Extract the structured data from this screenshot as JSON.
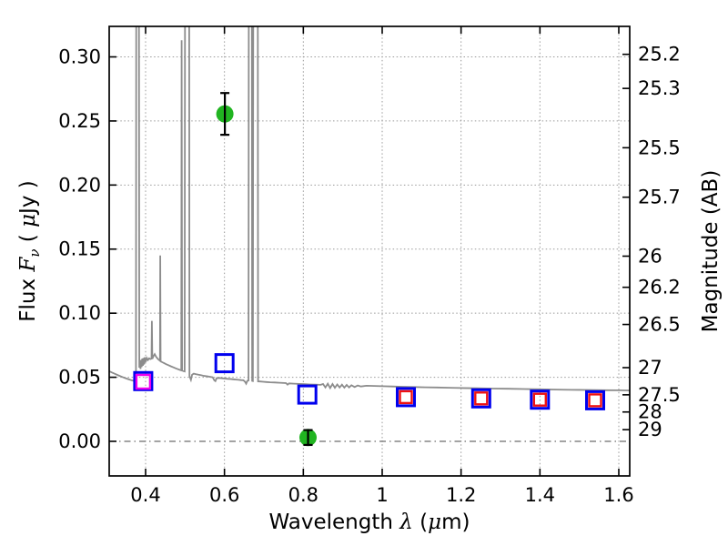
{
  "figure": {
    "background": "#ffffff",
    "frame_color": "#000000"
  },
  "chart_data": {
    "type": "line",
    "title": "",
    "xlabel": "Wavelength λ (μm)",
    "xlabel_parts": [
      {
        "t": "Wavelength  ",
        "cls": "n"
      },
      {
        "t": "λ",
        "cls": "mi"
      },
      {
        "t": " (",
        "cls": "n"
      },
      {
        "t": "μ",
        "cls": "mi"
      },
      {
        "t": "m)",
        "cls": "n"
      }
    ],
    "ylabel_left": "Flux Fν ( μJy )",
    "ylabel_left_parts": [
      {
        "t": "Flux  ",
        "cls": "n"
      },
      {
        "t": "F",
        "cls": "mi"
      },
      {
        "t": "ν",
        "cls": "sub"
      },
      {
        "t": "  ( ",
        "cls": "n"
      },
      {
        "t": "μ",
        "cls": "mi"
      },
      {
        "t": "Jy )",
        "cls": "n"
      }
    ],
    "ylabel_right": "Magnitude (AB)",
    "xlim": [
      0.3077,
      1.6277
    ],
    "ylim": [
      -0.027,
      0.3238
    ],
    "grid": {
      "style": "dotted",
      "color": "#9a9a9a",
      "on": true
    },
    "zero_line": {
      "y": 0.0,
      "style": "dash-dot",
      "color": "#4a4a4a"
    },
    "legend": "none",
    "x_ticks": [
      {
        "label": "0.4",
        "v": 0.4
      },
      {
        "label": "0.6",
        "v": 0.6
      },
      {
        "label": "0.8",
        "v": 0.8
      },
      {
        "label": "1",
        "v": 1.0
      },
      {
        "label": "1.2",
        "v": 1.2
      },
      {
        "label": "1.4",
        "v": 1.4
      },
      {
        "label": "1.6",
        "v": 1.6
      }
    ],
    "y_ticks_flux": [
      {
        "label": "0.00",
        "v": 0.0
      },
      {
        "label": "0.05",
        "v": 0.05
      },
      {
        "label": "0.10",
        "v": 0.1
      },
      {
        "label": "0.15",
        "v": 0.15
      },
      {
        "label": "0.20",
        "v": 0.2
      },
      {
        "label": "0.25",
        "v": 0.25
      },
      {
        "label": "0.30",
        "v": 0.3
      }
    ],
    "y_ticks_mag": [
      {
        "label": "25.2",
        "flux": 0.302
      },
      {
        "label": "25.3",
        "flux": 0.2754
      },
      {
        "label": "25.5",
        "flux": 0.2291
      },
      {
        "label": "25.7",
        "flux": 0.1905
      },
      {
        "label": "26",
        "flux": 0.1445
      },
      {
        "label": "26.2",
        "flux": 0.1202
      },
      {
        "label": "26.5",
        "flux": 0.0912
      },
      {
        "label": "27",
        "flux": 0.0575
      },
      {
        "label": "27.5",
        "flux": 0.0363
      },
      {
        "label": "28",
        "flux": 0.0229
      },
      {
        "label": "29",
        "flux": 0.0091
      }
    ],
    "series": [
      {
        "name": "model-spectrum",
        "type": "line",
        "color": "#8c8c8c",
        "width": 1.8,
        "points": [
          [
            0.3077,
            0.0547
          ],
          [
            0.315,
            0.0537
          ],
          [
            0.323,
            0.0526
          ],
          [
            0.331,
            0.0515
          ],
          [
            0.339,
            0.0505
          ],
          [
            0.347,
            0.0495
          ],
          [
            0.355,
            0.0486
          ],
          [
            0.363,
            0.0478
          ],
          [
            0.37,
            0.0472
          ],
          [
            0.3745,
            0.0469
          ],
          [
            0.3755,
            0.047
          ],
          [
            0.3762,
            0.34
          ],
          [
            0.3832,
            0.34
          ],
          [
            0.384,
            0.0575
          ],
          [
            0.3855,
            0.062
          ],
          [
            0.387,
            0.0565
          ],
          [
            0.3885,
            0.0635
          ],
          [
            0.39,
            0.058
          ],
          [
            0.3915,
            0.0645
          ],
          [
            0.393,
            0.059
          ],
          [
            0.3945,
            0.065
          ],
          [
            0.396,
            0.06
          ],
          [
            0.398,
            0.0655
          ],
          [
            0.4005,
            0.062
          ],
          [
            0.403,
            0.065
          ],
          [
            0.406,
            0.0635
          ],
          [
            0.409,
            0.0648
          ],
          [
            0.412,
            0.0642
          ],
          [
            0.415,
            0.0645
          ],
          [
            0.416,
            0.094
          ],
          [
            0.417,
            0.0643
          ],
          [
            0.42,
            0.0665
          ],
          [
            0.423,
            0.068
          ],
          [
            0.426,
            0.0663
          ],
          [
            0.429,
            0.065
          ],
          [
            0.432,
            0.064
          ],
          [
            0.435,
            0.0632
          ],
          [
            0.4365,
            0.0628
          ],
          [
            0.4372,
            0.145
          ],
          [
            0.438,
            0.0625
          ],
          [
            0.442,
            0.0618
          ],
          [
            0.447,
            0.061
          ],
          [
            0.452,
            0.0602
          ],
          [
            0.458,
            0.0594
          ],
          [
            0.464,
            0.0586
          ],
          [
            0.47,
            0.0578
          ],
          [
            0.476,
            0.057
          ],
          [
            0.482,
            0.0563
          ],
          [
            0.487,
            0.0557
          ],
          [
            0.4905,
            0.0554
          ],
          [
            0.4915,
            0.313
          ],
          [
            0.4925,
            0.0552
          ],
          [
            0.496,
            0.0548
          ],
          [
            0.499,
            0.0545
          ],
          [
            0.5,
            0.34
          ],
          [
            0.5105,
            0.34
          ],
          [
            0.5112,
            0.051
          ],
          [
            0.515,
            0.048
          ],
          [
            0.518,
            0.052
          ],
          [
            0.522,
            0.0528
          ],
          [
            0.528,
            0.0524
          ],
          [
            0.534,
            0.052
          ],
          [
            0.54,
            0.0516
          ],
          [
            0.546,
            0.0512
          ],
          [
            0.552,
            0.0509
          ],
          [
            0.558,
            0.0506
          ],
          [
            0.564,
            0.0503
          ],
          [
            0.57,
            0.05
          ],
          [
            0.574,
            0.0477
          ],
          [
            0.577,
            0.047
          ],
          [
            0.58,
            0.0493
          ],
          [
            0.587,
            0.0495
          ],
          [
            0.594,
            0.0492
          ],
          [
            0.601,
            0.049
          ],
          [
            0.608,
            0.0488
          ],
          [
            0.615,
            0.0486
          ],
          [
            0.622,
            0.0484
          ],
          [
            0.629,
            0.0482
          ],
          [
            0.636,
            0.048
          ],
          [
            0.642,
            0.0478
          ],
          [
            0.648,
            0.0476
          ],
          [
            0.652,
            0.0466
          ],
          [
            0.655,
            0.045
          ],
          [
            0.658,
            0.0472
          ],
          [
            0.661,
            0.0475
          ],
          [
            0.6617,
            0.34
          ],
          [
            0.6695,
            0.34
          ],
          [
            0.6702,
            0.0472
          ],
          [
            0.672,
            0.0471
          ],
          [
            0.673,
            0.34
          ],
          [
            0.6845,
            0.34
          ],
          [
            0.6852,
            0.0468
          ],
          [
            0.69,
            0.0467
          ],
          [
            0.698,
            0.0465
          ],
          [
            0.706,
            0.0463
          ],
          [
            0.716,
            0.0461
          ],
          [
            0.728,
            0.0459
          ],
          [
            0.74,
            0.0457
          ],
          [
            0.756,
            0.0454
          ],
          [
            0.76,
            0.0442
          ],
          [
            0.764,
            0.0452
          ],
          [
            0.776,
            0.045
          ],
          [
            0.79,
            0.0448
          ],
          [
            0.804,
            0.0446
          ],
          [
            0.818,
            0.0444
          ],
          [
            0.832,
            0.0442
          ],
          [
            0.844,
            0.0441
          ],
          [
            0.85,
            0.0447
          ],
          [
            0.856,
            0.042
          ],
          [
            0.862,
            0.0449
          ],
          [
            0.868,
            0.0416
          ],
          [
            0.874,
            0.0447
          ],
          [
            0.88,
            0.0418
          ],
          [
            0.886,
            0.0444
          ],
          [
            0.892,
            0.042
          ],
          [
            0.898,
            0.0442
          ],
          [
            0.904,
            0.0419
          ],
          [
            0.91,
            0.044
          ],
          [
            0.916,
            0.0421
          ],
          [
            0.922,
            0.0438
          ],
          [
            0.93,
            0.0424
          ],
          [
            0.938,
            0.0436
          ],
          [
            0.946,
            0.0428
          ],
          [
            0.96,
            0.0434
          ],
          [
            0.98,
            0.0432
          ],
          [
            1.0,
            0.043
          ],
          [
            1.025,
            0.0428
          ],
          [
            1.05,
            0.0426
          ],
          [
            1.08,
            0.0424
          ],
          [
            1.11,
            0.0422
          ],
          [
            1.14,
            0.042
          ],
          [
            1.17,
            0.0418
          ],
          [
            1.2,
            0.0416
          ],
          [
            1.24,
            0.0414
          ],
          [
            1.28,
            0.0412
          ],
          [
            1.32,
            0.041
          ],
          [
            1.36,
            0.0408
          ],
          [
            1.4,
            0.0406
          ],
          [
            1.44,
            0.0404
          ],
          [
            1.48,
            0.0402
          ],
          [
            1.52,
            0.0401
          ],
          [
            1.56,
            0.0399
          ],
          [
            1.6,
            0.0398
          ],
          [
            1.6277,
            0.0397
          ]
        ]
      },
      {
        "name": "photometry-blue-squares",
        "type": "scatter",
        "marker": "square",
        "color": "#0000ee",
        "size": 19,
        "stroke": 3,
        "points": [
          [
            0.394,
            0.047
          ],
          [
            0.6,
            0.061
          ],
          [
            0.81,
            0.0365
          ],
          [
            1.06,
            0.0345
          ],
          [
            1.251,
            0.0335
          ],
          [
            1.4,
            0.0325
          ],
          [
            1.54,
            0.032
          ]
        ]
      },
      {
        "name": "photometry-magenta-square",
        "type": "scatter",
        "marker": "square",
        "color": "#ee00ee",
        "size": 15,
        "stroke": 2.4,
        "points": [
          [
            0.394,
            0.0465
          ]
        ]
      },
      {
        "name": "photometry-red-squares",
        "type": "scatter",
        "marker": "square",
        "color": "#ee1111",
        "size": 13,
        "stroke": 2.4,
        "points": [
          [
            1.06,
            0.0345
          ],
          [
            1.251,
            0.0335
          ],
          [
            1.4,
            0.0325
          ],
          [
            1.54,
            0.032
          ]
        ]
      },
      {
        "name": "line-flux-green-circles",
        "type": "scatter",
        "marker": "circle",
        "color": "#21b421",
        "err_color": "#000000",
        "size": 19,
        "points": [
          [
            0.601,
            0.2555
          ],
          [
            0.812,
            0.003
          ]
        ],
        "yerr": [
          0.0163,
          0.0058
        ]
      }
    ]
  }
}
